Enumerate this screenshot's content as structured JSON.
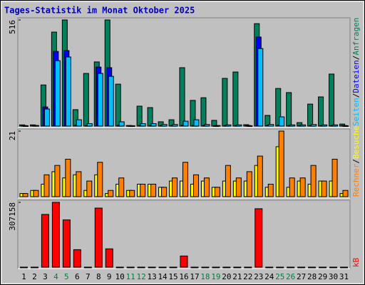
{
  "chart_data": [
    {
      "type": "bar",
      "title": "Tages-Statistik im Monat Oktober 2025",
      "ylim": [
        0,
        516
      ],
      "yticks": [
        516
      ],
      "legend_separator": "/",
      "series": [
        {
          "name": "Anfragen",
          "color": "#00805c",
          "values": [
            6,
            6,
            200,
            457,
            516,
            80,
            256,
            312,
            516,
            204,
            3,
            97,
            90,
            21,
            31,
            284,
            125,
            138,
            28,
            232,
            263,
            7,
            498,
            52,
            183,
            163,
            17,
            107,
            142,
            253,
            10
          ]
        },
        {
          "name": "Dateien",
          "color": "#0000ff",
          "values": [
            3,
            3,
            93,
            363,
            367,
            5,
            3,
            287,
            284,
            3,
            2,
            3,
            3,
            3,
            3,
            5,
            3,
            3,
            2,
            3,
            3,
            3,
            433,
            5,
            5,
            3,
            3,
            3,
            3,
            3,
            3
          ]
        },
        {
          "name": "Seiten",
          "color": "#00c0ff",
          "values": [
            2,
            3,
            83,
            318,
            336,
            31,
            12,
            256,
            242,
            21,
            2,
            12,
            12,
            8,
            8,
            24,
            31,
            8,
            3,
            6,
            6,
            2,
            377,
            8,
            45,
            6,
            6,
            8,
            6,
            6,
            2
          ]
        }
      ]
    },
    {
      "type": "bar",
      "ylim": [
        0,
        21
      ],
      "yticks": [
        21
      ],
      "legend_separator": "/",
      "series": [
        {
          "name": "Besuche",
          "color": "#ffff00",
          "values": [
            1,
            2,
            4,
            8,
            6,
            7,
            2,
            7,
            1,
            4,
            2,
            4,
            4,
            3,
            5,
            5,
            4,
            5,
            3,
            5,
            5,
            5,
            10,
            3,
            16,
            3,
            5,
            4,
            5,
            5,
            1
          ]
        },
        {
          "name": "Rechner",
          "color": "#ff8000",
          "values": [
            1,
            2,
            7,
            10,
            12,
            8,
            5,
            11,
            2,
            6,
            2,
            4,
            4,
            3,
            6,
            11,
            7,
            6,
            3,
            10,
            6,
            8,
            13,
            4,
            21,
            6,
            6,
            10,
            5,
            12,
            2
          ]
        }
      ]
    },
    {
      "type": "bar",
      "ylim": [
        0,
        307158
      ],
      "yticks": [
        307158
      ],
      "categories": [
        "1",
        "2",
        "3",
        "4",
        "5",
        "6",
        "7",
        "8",
        "9",
        "10",
        "11",
        "12",
        "13",
        "14",
        "15",
        "16",
        "17",
        "18",
        "19",
        "20",
        "21",
        "22",
        "23",
        "24",
        "25",
        "26",
        "27",
        "28",
        "29",
        "30",
        "31"
      ],
      "category_colors": [
        "#000000",
        "#000000",
        "#000000",
        "#008040",
        "#008040",
        "#000000",
        "#000000",
        "#000000",
        "#000000",
        "#000000",
        "#008040",
        "#008040",
        "#000000",
        "#000000",
        "#000000",
        "#000000",
        "#000000",
        "#008040",
        "#008040",
        "#000000",
        "#000000",
        "#000000",
        "#000000",
        "#000000",
        "#008040",
        "#008040",
        "#000000",
        "#000000",
        "#000000",
        "#000000",
        "#000000"
      ],
      "series": [
        {
          "name": "kB",
          "color": "#ff0000",
          "values": [
            300,
            300,
            250000,
            307158,
            224000,
            83000,
            300,
            280000,
            87000,
            300,
            300,
            300,
            300,
            300,
            300,
            53000,
            300,
            300,
            300,
            300,
            300,
            300,
            277000,
            300,
            300,
            300,
            300,
            300,
            300,
            300,
            300
          ]
        }
      ]
    }
  ]
}
